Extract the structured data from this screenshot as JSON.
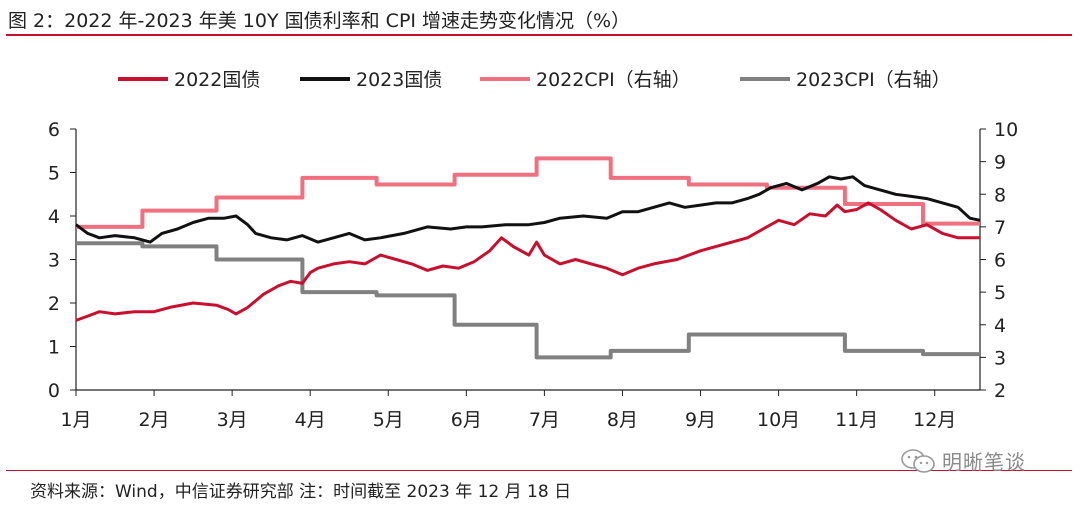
{
  "header": {
    "title": "图 2：2022 年-2023 年美 10Y 国债利率和 CPI 增速走势变化情况（%）"
  },
  "footer": {
    "source": "资料来源：Wind，中信证券研究部 注：时间截至 2023 年 12 月 18 日",
    "watermark": "明晰笔谈"
  },
  "colors": {
    "accent_rule": "#c8102e",
    "watermark_icon": "#9a9a9a"
  },
  "chart_data": {
    "type": "line",
    "title": "",
    "legend_position": "top",
    "grid": false,
    "categories": [
      "1月",
      "2月",
      "3月",
      "4月",
      "5月",
      "6月",
      "7月",
      "8月",
      "9月",
      "10月",
      "11月",
      "12月"
    ],
    "x_range": [
      1,
      12.58
    ],
    "y_left": {
      "range": [
        0,
        6
      ],
      "ticks": [
        "0",
        "1",
        "2",
        "3",
        "4",
        "5",
        "6"
      ]
    },
    "y_right": {
      "range": [
        2,
        10
      ],
      "ticks": [
        "2",
        "3",
        "4",
        "5",
        "6",
        "7",
        "8",
        "9",
        "10"
      ]
    },
    "series": [
      {
        "name": "2022国债",
        "axis": "left",
        "color": "#c8102e",
        "style": "line",
        "x": [
          1.0,
          1.15,
          1.3,
          1.5,
          1.75,
          2.0,
          2.2,
          2.5,
          2.8,
          2.95,
          3.05,
          3.2,
          3.4,
          3.6,
          3.75,
          3.9,
          4.0,
          4.1,
          4.3,
          4.5,
          4.7,
          4.9,
          5.1,
          5.3,
          5.5,
          5.7,
          5.9,
          6.1,
          6.3,
          6.45,
          6.6,
          6.8,
          6.9,
          7.0,
          7.2,
          7.4,
          7.6,
          7.8,
          8.0,
          8.2,
          8.4,
          8.7,
          9.0,
          9.3,
          9.6,
          9.8,
          10.0,
          10.2,
          10.4,
          10.6,
          10.75,
          10.85,
          11.0,
          11.15,
          11.3,
          11.5,
          11.7,
          11.9,
          12.1,
          12.3,
          12.58
        ],
        "values": [
          1.6,
          1.7,
          1.8,
          1.75,
          1.8,
          1.8,
          1.9,
          2.0,
          1.95,
          1.85,
          1.75,
          1.9,
          2.2,
          2.4,
          2.5,
          2.45,
          2.7,
          2.8,
          2.9,
          2.95,
          2.9,
          3.1,
          3.0,
          2.9,
          2.75,
          2.85,
          2.8,
          2.95,
          3.2,
          3.5,
          3.3,
          3.1,
          3.4,
          3.1,
          2.9,
          3.0,
          2.9,
          2.8,
          2.65,
          2.8,
          2.9,
          3.0,
          3.2,
          3.35,
          3.5,
          3.7,
          3.9,
          3.8,
          4.05,
          4.0,
          4.25,
          4.1,
          4.15,
          4.3,
          4.15,
          3.9,
          3.7,
          3.8,
          3.6,
          3.5,
          3.5
        ]
      },
      {
        "name": "2023国债",
        "axis": "left",
        "color": "#111111",
        "style": "line",
        "x": [
          1.0,
          1.15,
          1.3,
          1.5,
          1.75,
          1.95,
          2.1,
          2.3,
          2.5,
          2.7,
          2.9,
          3.05,
          3.2,
          3.3,
          3.5,
          3.7,
          3.9,
          4.1,
          4.3,
          4.5,
          4.7,
          4.9,
          5.2,
          5.5,
          5.8,
          6.0,
          6.2,
          6.5,
          6.8,
          7.0,
          7.2,
          7.5,
          7.8,
          8.0,
          8.2,
          8.4,
          8.6,
          8.8,
          9.0,
          9.2,
          9.4,
          9.6,
          9.75,
          9.9,
          10.1,
          10.3,
          10.5,
          10.65,
          10.8,
          10.95,
          11.1,
          11.3,
          11.5,
          11.7,
          11.9,
          12.1,
          12.3,
          12.45,
          12.58
        ],
        "values": [
          3.8,
          3.6,
          3.5,
          3.55,
          3.5,
          3.4,
          3.6,
          3.7,
          3.85,
          3.95,
          3.95,
          4.0,
          3.8,
          3.6,
          3.5,
          3.45,
          3.55,
          3.4,
          3.5,
          3.6,
          3.45,
          3.5,
          3.6,
          3.75,
          3.7,
          3.75,
          3.75,
          3.8,
          3.8,
          3.85,
          3.95,
          4.0,
          3.95,
          4.1,
          4.1,
          4.2,
          4.3,
          4.2,
          4.25,
          4.3,
          4.3,
          4.4,
          4.5,
          4.65,
          4.75,
          4.6,
          4.75,
          4.9,
          4.85,
          4.9,
          4.7,
          4.6,
          4.5,
          4.45,
          4.4,
          4.3,
          4.2,
          3.95,
          3.9
        ]
      },
      {
        "name": "2022CPI（右轴）",
        "axis": "right",
        "color": "#f07080",
        "style": "step",
        "x": [
          1.0,
          1.85,
          2.8,
          3.9,
          4.85,
          5.85,
          6.9,
          7.85,
          8.85,
          9.85,
          10.85,
          11.85,
          12.58
        ],
        "values": [
          7.0,
          7.5,
          7.9,
          8.5,
          8.3,
          8.6,
          9.1,
          8.5,
          8.3,
          8.2,
          7.7,
          7.1,
          7.1
        ]
      },
      {
        "name": "2023CPI（右轴）",
        "axis": "right",
        "color": "#808080",
        "style": "step",
        "x": [
          1.0,
          1.85,
          2.8,
          3.9,
          4.85,
          5.85,
          6.9,
          7.85,
          8.85,
          9.85,
          10.85,
          11.85,
          12.58
        ],
        "values": [
          6.5,
          6.4,
          6.0,
          5.0,
          4.9,
          4.0,
          3.0,
          3.2,
          3.7,
          3.7,
          3.2,
          3.1,
          3.1
        ]
      }
    ]
  }
}
